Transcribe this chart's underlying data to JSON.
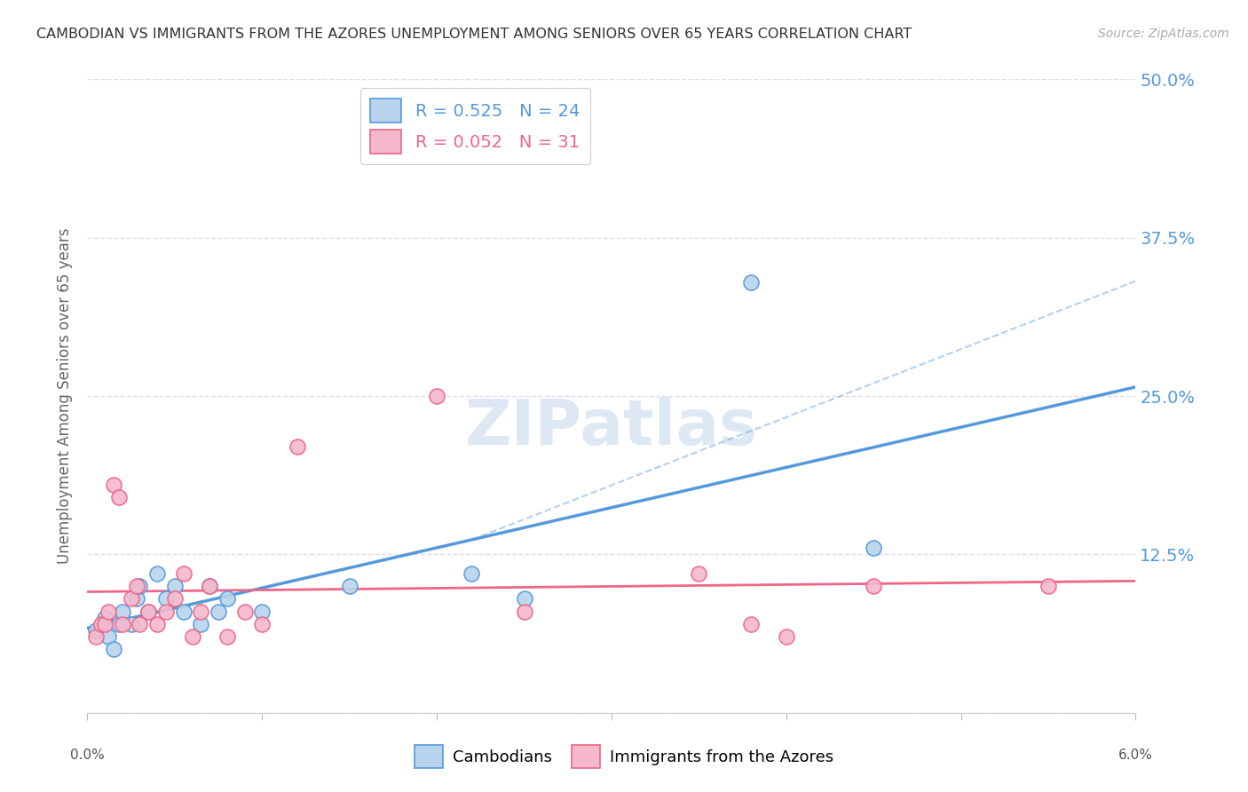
{
  "title": "CAMBODIAN VS IMMIGRANTS FROM THE AZORES UNEMPLOYMENT AMONG SENIORS OVER 65 YEARS CORRELATION CHART",
  "source": "Source: ZipAtlas.com",
  "ylabel": "Unemployment Among Seniors over 65 years",
  "xlim": [
    0.0,
    6.0
  ],
  "ylim": [
    0.0,
    50.0
  ],
  "yticks": [
    0,
    12.5,
    25.0,
    37.5,
    50.0
  ],
  "ytick_labels": [
    "",
    "12.5%",
    "25.0%",
    "37.5%",
    "50.0%"
  ],
  "watermark": "ZIPatlas",
  "cambodian_color": "#b8d4ed",
  "azores_color": "#f5b8cc",
  "trend_cambodian_color": "#5599dd",
  "trend_azores_color": "#ee6688",
  "background_color": "#ffffff",
  "grid_color": "#ddddee",
  "cambodian_x": [
    0.05,
    0.1,
    0.12,
    0.15,
    0.18,
    0.2,
    0.25,
    0.28,
    0.3,
    0.35,
    0.4,
    0.45,
    0.5,
    0.55,
    0.65,
    0.7,
    0.75,
    0.8,
    1.0,
    1.5,
    2.2,
    2.5,
    3.8,
    4.5
  ],
  "cambodian_y": [
    6.5,
    7.5,
    6,
    5,
    7,
    8,
    7,
    9,
    10,
    8,
    11,
    9,
    10,
    8,
    7,
    10,
    8,
    9,
    8,
    10,
    11,
    9,
    34,
    13
  ],
  "azores_x": [
    0.05,
    0.08,
    0.1,
    0.12,
    0.15,
    0.18,
    0.2,
    0.25,
    0.28,
    0.3,
    0.35,
    0.4,
    0.45,
    0.5,
    0.55,
    0.6,
    0.65,
    0.7,
    0.8,
    0.9,
    1.0,
    1.2,
    2.0,
    2.5,
    3.5,
    3.8,
    4.0,
    4.5,
    5.5
  ],
  "azores_y": [
    6,
    7,
    7,
    8,
    18,
    17,
    7,
    9,
    10,
    7,
    8,
    7,
    8,
    9,
    11,
    6,
    8,
    10,
    6,
    8,
    7,
    21,
    25,
    8,
    11,
    7,
    6,
    10,
    10
  ],
  "xticks": [
    0,
    1,
    2,
    3,
    4,
    5,
    6
  ]
}
